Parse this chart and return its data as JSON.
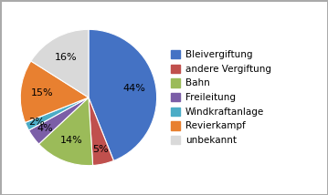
{
  "labels": [
    "Bleivergiftung",
    "andere Vergiftung",
    "Bahn",
    "Freileitung",
    "Windkraftanlage",
    "Revierkampf",
    "unbekannt"
  ],
  "values": [
    44,
    5,
    14,
    4,
    2,
    15,
    16
  ],
  "colors": [
    "#4472c4",
    "#c0504d",
    "#9bbb59",
    "#7b5ea7",
    "#4bacc6",
    "#e88030",
    "#d9d9d9"
  ],
  "pct_labels": [
    "44%",
    "5%",
    "14%",
    "4%",
    "2%",
    "15%",
    "16%"
  ],
  "startangle": 90,
  "background_color": "#ffffff",
  "border_color": "#aaaaaa",
  "legend_fontsize": 7.5,
  "pct_fontsize": 8,
  "pct_distances": [
    0.68,
    0.78,
    0.68,
    0.78,
    0.84,
    0.68,
    0.68
  ]
}
